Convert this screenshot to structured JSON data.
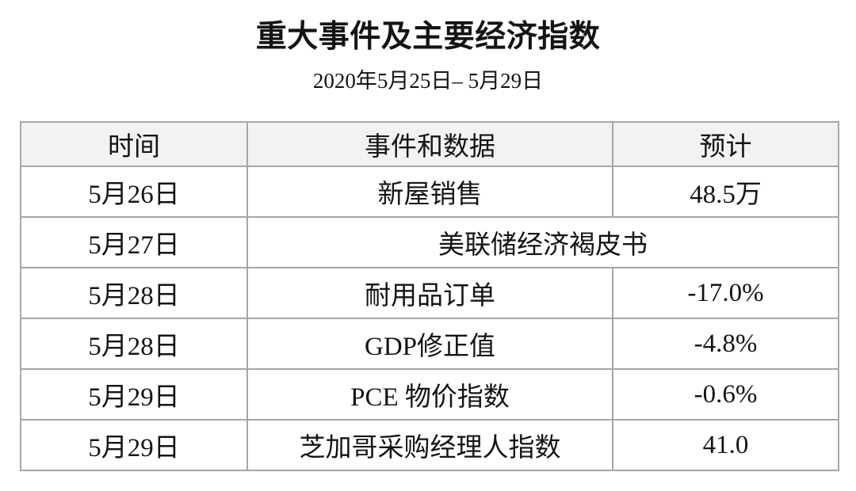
{
  "chart_data": {
    "type": "table",
    "title": "重大事件及主要经济指数",
    "subtitle": "2020年5月25日– 5月29日",
    "columns": [
      "时间",
      "事件和数据",
      "预计"
    ],
    "rows": [
      [
        "5月26日",
        "新屋销售",
        "48.5万"
      ],
      [
        "5月27日",
        "美联储经济褐皮书",
        ""
      ],
      [
        "5月28日",
        "耐用品订单",
        "-17.0%"
      ],
      [
        "5月28日",
        "GDP修正值",
        "-4.8%"
      ],
      [
        "5月29日",
        "PCE 物价指数",
        "-0.6%"
      ],
      [
        "5月29日",
        "芝加哥采购经理人指数",
        "41.0"
      ]
    ],
    "merged_cells": [
      {
        "row": 1,
        "col": 1,
        "colspan": 2
      }
    ],
    "layout": {
      "grid": "full-borders",
      "header_shaded": true,
      "text_align": "center"
    }
  },
  "colors": {
    "page_bg": "#ffffff",
    "header_bg": "#f2f2f2",
    "border_color": "#a6a6a6",
    "text_color": "#141414"
  }
}
